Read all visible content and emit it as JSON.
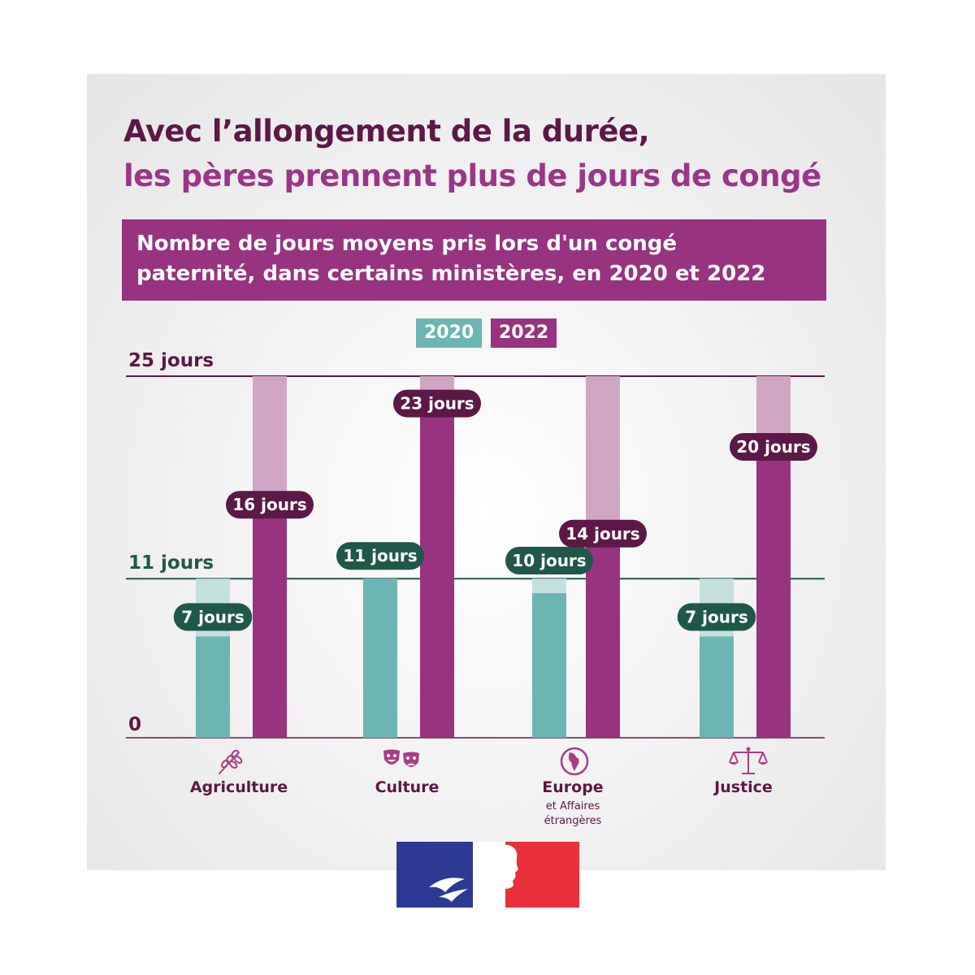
{
  "title": {
    "line1": "Avec l’allongement de la durée,",
    "line2": "les pères prennent plus de jours de congé"
  },
  "subtitle": {
    "line1": "Nombre de jours moyens pris lors d'un congé",
    "line2": "paternité, dans certains ministères, en 2020 et 2022"
  },
  "colors": {
    "title_dark": "#5c1846",
    "title_light": "#9b3589",
    "bar_2020": "#6bb6b2",
    "bar_2020_track": "#c3e0de",
    "bar_2022": "#97337f",
    "bar_2022_track": "#d1a6c4",
    "pill_2020": "#1f5849",
    "pill_2022": "#5c1846"
  },
  "chart_data": {
    "type": "bar",
    "title": "Nombre de jours moyens pris lors d'un congé paternité, dans certains ministères, en 2020 et 2022",
    "categories": [
      "Agriculture",
      "Culture",
      "Europe et Affaires étrangères",
      "Justice"
    ],
    "series": [
      {
        "name": "2020",
        "values": [
          7,
          11,
          10,
          7
        ],
        "labels": [
          "7 jours",
          "11 jours",
          "10 jours",
          "7 jours"
        ],
        "max": 11
      },
      {
        "name": "2022",
        "values": [
          16,
          23,
          14,
          20
        ],
        "labels": [
          "16 jours",
          "23 jours",
          "14 jours",
          "20 jours"
        ],
        "max": 25
      }
    ],
    "reference_lines": [
      {
        "value": 25,
        "label": "25 jours"
      },
      {
        "value": 11,
        "label": "11 jours"
      },
      {
        "value": 0,
        "label": "0"
      }
    ],
    "ylim": [
      0,
      25
    ],
    "legend": "top-center"
  },
  "categories_display": [
    {
      "name": "Agriculture",
      "icon": "wheat-icon"
    },
    {
      "name": "Culture",
      "icon": "theater-masks-icon"
    },
    {
      "name": "Europe",
      "sub1": "et Affaires",
      "sub2": "étrangères",
      "icon": "globe-icon"
    },
    {
      "name": "Justice",
      "icon": "scales-icon"
    }
  ],
  "logo": "republique-francaise-marianne-logo"
}
